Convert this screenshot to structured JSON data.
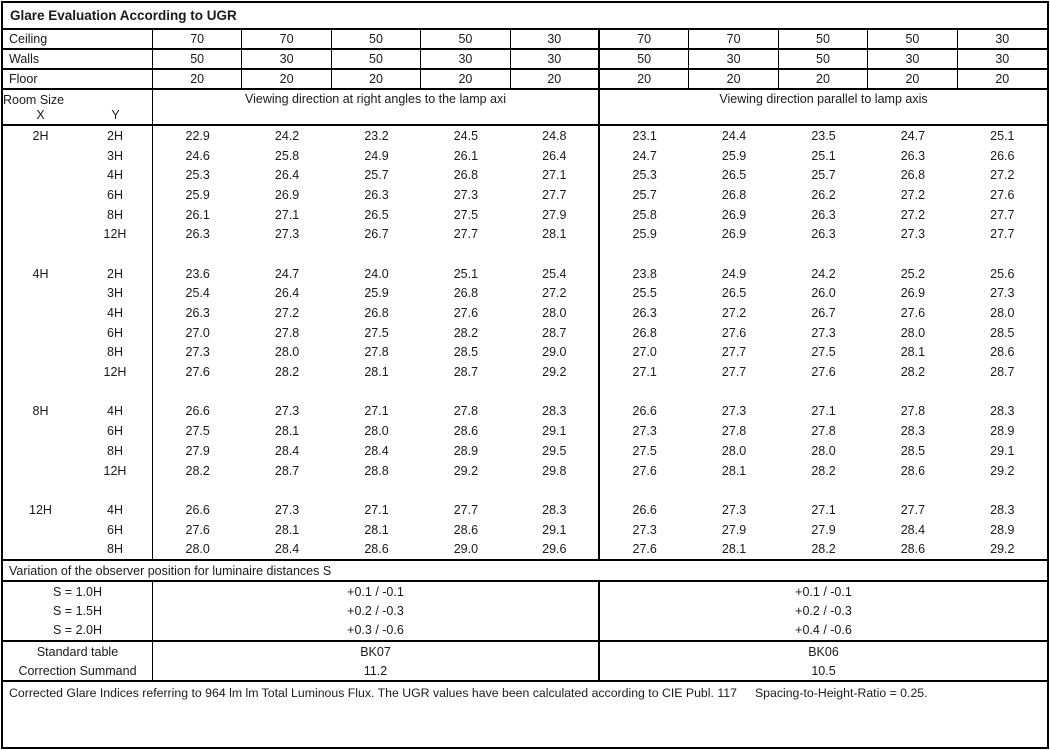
{
  "title": "Glare Evaluation According to UGR",
  "surface_rows": [
    {
      "label": "Ceiling",
      "values": [
        "70",
        "70",
        "50",
        "50",
        "30",
        "70",
        "70",
        "50",
        "50",
        "30"
      ]
    },
    {
      "label": "Walls",
      "values": [
        "50",
        "30",
        "50",
        "30",
        "30",
        "50",
        "30",
        "50",
        "30",
        "30"
      ]
    },
    {
      "label": "Floor",
      "values": [
        "20",
        "20",
        "20",
        "20",
        "20",
        "20",
        "20",
        "20",
        "20",
        "20"
      ]
    }
  ],
  "room_size": {
    "label": "Room Size",
    "x_label": "X",
    "y_label": "Y"
  },
  "group_headers": {
    "left": "Viewing direction at right angles to the lamp axi",
    "right": "Viewing direction parallel to lamp axis"
  },
  "ugr_sections": [
    {
      "x": "2H",
      "rows": [
        {
          "y": "2H",
          "values": [
            "22.9",
            "24.2",
            "23.2",
            "24.5",
            "24.8",
            "23.1",
            "24.4",
            "23.5",
            "24.7",
            "25.1"
          ]
        },
        {
          "y": "3H",
          "values": [
            "24.6",
            "25.8",
            "24.9",
            "26.1",
            "26.4",
            "24.7",
            "25.9",
            "25.1",
            "26.3",
            "26.6"
          ]
        },
        {
          "y": "4H",
          "values": [
            "25.3",
            "26.4",
            "25.7",
            "26.8",
            "27.1",
            "25.3",
            "26.5",
            "25.7",
            "26.8",
            "27.2"
          ]
        },
        {
          "y": "6H",
          "values": [
            "25.9",
            "26.9",
            "26.3",
            "27.3",
            "27.7",
            "25.7",
            "26.8",
            "26.2",
            "27.2",
            "27.6"
          ]
        },
        {
          "y": "8H",
          "values": [
            "26.1",
            "27.1",
            "26.5",
            "27.5",
            "27.9",
            "25.8",
            "26.9",
            "26.3",
            "27.2",
            "27.7"
          ]
        },
        {
          "y": "12H",
          "values": [
            "26.3",
            "27.3",
            "26.7",
            "27.7",
            "28.1",
            "25.9",
            "26.9",
            "26.3",
            "27.3",
            "27.7"
          ]
        }
      ]
    },
    {
      "x": "4H",
      "rows": [
        {
          "y": "2H",
          "values": [
            "23.6",
            "24.7",
            "24.0",
            "25.1",
            "25.4",
            "23.8",
            "24.9",
            "24.2",
            "25.2",
            "25.6"
          ]
        },
        {
          "y": "3H",
          "values": [
            "25.4",
            "26.4",
            "25.9",
            "26.8",
            "27.2",
            "25.5",
            "26.5",
            "26.0",
            "26.9",
            "27.3"
          ]
        },
        {
          "y": "4H",
          "values": [
            "26.3",
            "27.2",
            "26.8",
            "27.6",
            "28.0",
            "26.3",
            "27.2",
            "26.7",
            "27.6",
            "28.0"
          ]
        },
        {
          "y": "6H",
          "values": [
            "27.0",
            "27.8",
            "27.5",
            "28.2",
            "28.7",
            "26.8",
            "27.6",
            "27.3",
            "28.0",
            "28.5"
          ]
        },
        {
          "y": "8H",
          "values": [
            "27.3",
            "28.0",
            "27.8",
            "28.5",
            "29.0",
            "27.0",
            "27.7",
            "27.5",
            "28.1",
            "28.6"
          ]
        },
        {
          "y": "12H",
          "values": [
            "27.6",
            "28.2",
            "28.1",
            "28.7",
            "29.2",
            "27.1",
            "27.7",
            "27.6",
            "28.2",
            "28.7"
          ]
        }
      ]
    },
    {
      "x": "8H",
      "rows": [
        {
          "y": "4H",
          "values": [
            "26.6",
            "27.3",
            "27.1",
            "27.8",
            "28.3",
            "26.6",
            "27.3",
            "27.1",
            "27.8",
            "28.3"
          ]
        },
        {
          "y": "6H",
          "values": [
            "27.5",
            "28.1",
            "28.0",
            "28.6",
            "29.1",
            "27.3",
            "27.8",
            "27.8",
            "28.3",
            "28.9"
          ]
        },
        {
          "y": "8H",
          "values": [
            "27.9",
            "28.4",
            "28.4",
            "28.9",
            "29.5",
            "27.5",
            "28.0",
            "28.0",
            "28.5",
            "29.1"
          ]
        },
        {
          "y": "12H",
          "values": [
            "28.2",
            "28.7",
            "28.8",
            "29.2",
            "29.8",
            "27.6",
            "28.1",
            "28.2",
            "28.6",
            "29.2"
          ]
        }
      ]
    },
    {
      "x": "12H",
      "rows": [
        {
          "y": "4H",
          "values": [
            "26.6",
            "27.3",
            "27.1",
            "27.7",
            "28.3",
            "26.6",
            "27.3",
            "27.1",
            "27.7",
            "28.3"
          ]
        },
        {
          "y": "6H",
          "values": [
            "27.6",
            "28.1",
            "28.1",
            "28.6",
            "29.1",
            "27.3",
            "27.9",
            "27.9",
            "28.4",
            "28.9"
          ]
        },
        {
          "y": "8H",
          "values": [
            "28.0",
            "28.4",
            "28.6",
            "29.0",
            "29.6",
            "27.6",
            "28.1",
            "28.2",
            "28.6",
            "29.2"
          ]
        }
      ]
    }
  ],
  "variation": {
    "header": "Variation of the observer position for luminaire distances S",
    "rows": [
      {
        "label": "S = 1.0H",
        "left": "+0.1 / -0.1",
        "right": "+0.1 / -0.1"
      },
      {
        "label": "S = 1.5H",
        "left": "+0.2 / -0.3",
        "right": "+0.2 / -0.3"
      },
      {
        "label": "S = 2.0H",
        "left": "+0.3 / -0.6",
        "right": "+0.4 / -0.6"
      }
    ]
  },
  "summary_rows": [
    {
      "label": "Standard table",
      "left": "BK07",
      "right": "BK06"
    },
    {
      "label": "Correction Summand",
      "left": "11.2",
      "right": "10.5"
    }
  ],
  "footer": {
    "text": "Corrected Glare Indices referring to 964 lm lm Total Luminous Flux. The UGR values have been calculated according to CIE Publ. 117",
    "ratio": "Spacing-to-Height-Ratio = 0.25."
  }
}
